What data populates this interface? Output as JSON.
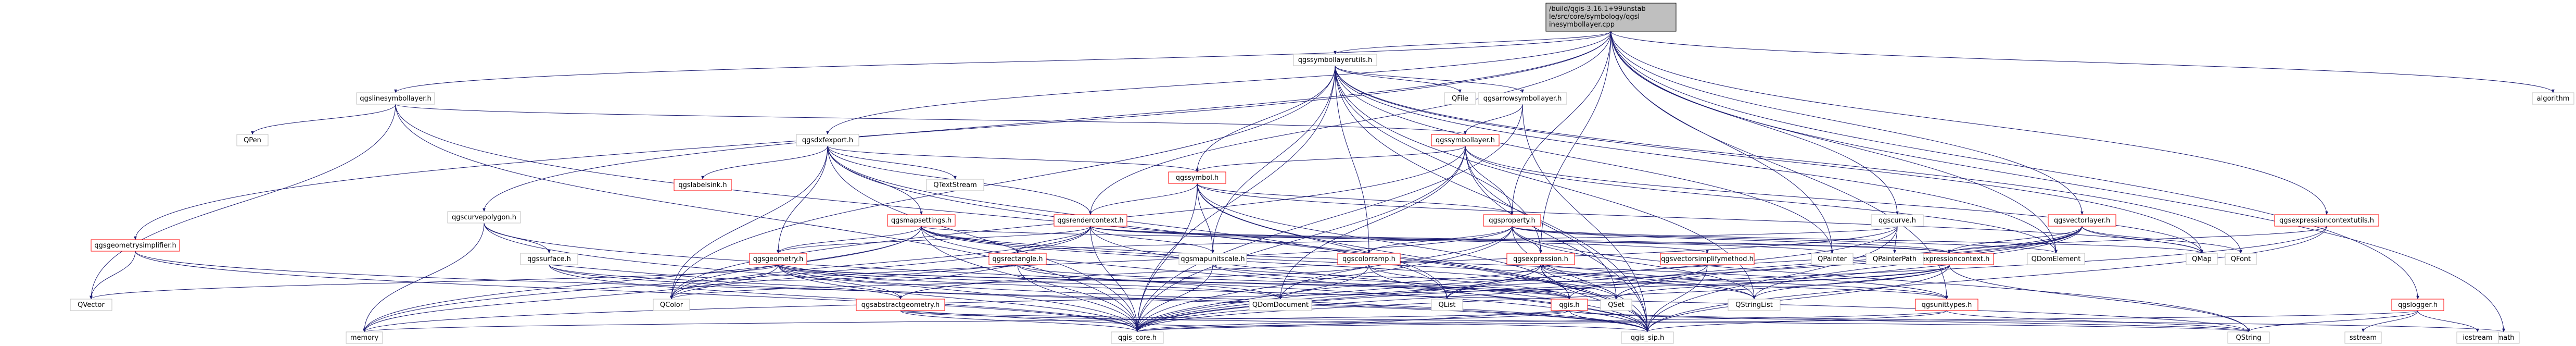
{
  "diagram": {
    "type": "include-dependency-graph",
    "colors": {
      "edge": "#191970",
      "border_default": "#bfbfbf",
      "border_link": "#ff0000",
      "border_root": "#000000",
      "fill_root": "#bfbfbf",
      "fill_default": "#ffffff",
      "text": "#000000"
    },
    "nodes": [
      {
        "id": "root",
        "label": "/build/qgis-3.16.1+99unstable/src/core/symbology/qgslinesymbollayer.cpp",
        "kind": "root"
      },
      {
        "id": "qgslinesymbollayer_h",
        "label": "qgslinesymbollayer.h",
        "kind": "default"
      },
      {
        "id": "qgssymbollayerutils_h",
        "label": "qgssymbollayerutils.h",
        "kind": "default"
      },
      {
        "id": "qgsdxfexport_h",
        "label": "qgsdxfexport.h",
        "kind": "default"
      },
      {
        "id": "qgsrendercontext_h",
        "label": "qgsrendercontext.h",
        "kind": "link"
      },
      {
        "id": "qgscurvepolygon_h",
        "label": "qgscurvepolygon.h",
        "kind": "default"
      },
      {
        "id": "qgsgeometrysimplifier_h",
        "label": "qgsgeometrysimplifier.h",
        "kind": "link"
      },
      {
        "id": "qgsarrowsymbollayer_h",
        "label": "qgsarrowsymbollayer.h",
        "kind": "default"
      },
      {
        "id": "qgssymbollayer_h",
        "label": "qgssymbollayer.h",
        "kind": "link"
      },
      {
        "id": "qgssymbol_h",
        "label": "qgssymbol.h",
        "kind": "link"
      },
      {
        "id": "qgsproperty_h",
        "label": "qgsproperty.h",
        "kind": "link"
      },
      {
        "id": "qgscurve_h",
        "label": "qgscurve.h",
        "kind": "default"
      },
      {
        "id": "qgsvectorlayer_h",
        "label": "qgsvectorlayer.h",
        "kind": "link"
      },
      {
        "id": "qgsexpressioncontextutils_h",
        "label": "qgsexpressioncontextutils.h",
        "kind": "link"
      },
      {
        "id": "qgslogger_h",
        "label": "qgslogger.h",
        "kind": "link"
      },
      {
        "id": "qgslabelsink_h",
        "label": "qgslabelsink.h",
        "kind": "link"
      },
      {
        "id": "qgsmapsettings_h",
        "label": "qgsmapsettings.h",
        "kind": "link"
      },
      {
        "id": "qgssurface_h",
        "label": "qgssurface.h",
        "kind": "default"
      },
      {
        "id": "qgsgeometry_h",
        "label": "qgsgeometry.h",
        "kind": "link"
      },
      {
        "id": "qgsrectangle_h",
        "label": "qgsrectangle.h",
        "kind": "link"
      },
      {
        "id": "qgsmapunitscale_h",
        "label": "qgsmapunitscale.h",
        "kind": "default"
      },
      {
        "id": "qgsvectorsimplifymethod_h",
        "label": "qgsvectorsimplifymethod.h",
        "kind": "link"
      },
      {
        "id": "qgscolorramp_h",
        "label": "qgscolorramp.h",
        "kind": "link"
      },
      {
        "id": "qgsexpression_h",
        "label": "qgsexpression.h",
        "kind": "link"
      },
      {
        "id": "qgsexpressioncontext_h",
        "label": "qgsexpressioncontext.h",
        "kind": "link"
      },
      {
        "id": "qgsabstractgeometry_h",
        "label": "qgsabstractgeometry.h",
        "kind": "link"
      },
      {
        "id": "qgis_h",
        "label": "qgis.h",
        "kind": "link"
      },
      {
        "id": "qgsunittypes_h",
        "label": "qgsunittypes.h",
        "kind": "link"
      },
      {
        "id": "qgis_core_h",
        "label": "qgis_core.h",
        "kind": "default"
      },
      {
        "id": "qgis_sip_h",
        "label": "qgis_sip.h",
        "kind": "default"
      },
      {
        "id": "QPen",
        "label": "QPen",
        "kind": "default"
      },
      {
        "id": "QTextStream",
        "label": "QTextStream",
        "kind": "default"
      },
      {
        "id": "QFile",
        "label": "QFile",
        "kind": "default"
      },
      {
        "id": "QMap",
        "label": "QMap",
        "kind": "default"
      },
      {
        "id": "QPainter",
        "label": "QPainter",
        "kind": "default"
      },
      {
        "id": "QFont",
        "label": "QFont",
        "kind": "default"
      },
      {
        "id": "QDomElement",
        "label": "QDomElement",
        "kind": "default"
      },
      {
        "id": "QPainterPath",
        "label": "QPainterPath",
        "kind": "default"
      },
      {
        "id": "QVector",
        "label": "QVector",
        "kind": "default"
      },
      {
        "id": "QColor",
        "label": "QColor",
        "kind": "default"
      },
      {
        "id": "QDomDocument",
        "label": "QDomDocument",
        "kind": "default"
      },
      {
        "id": "QList",
        "label": "QList",
        "kind": "default"
      },
      {
        "id": "QSet",
        "label": "QSet",
        "kind": "default"
      },
      {
        "id": "QStringList",
        "label": "QStringList",
        "kind": "default"
      },
      {
        "id": "QString",
        "label": "QString",
        "kind": "default"
      },
      {
        "id": "memory",
        "label": "memory",
        "kind": "default"
      },
      {
        "id": "cmath",
        "label": "cmath",
        "kind": "default"
      },
      {
        "id": "sstream",
        "label": "sstream",
        "kind": "default"
      },
      {
        "id": "iostream",
        "label": "iostream",
        "kind": "default"
      },
      {
        "id": "algorithm",
        "label": "algorithm",
        "kind": "default"
      }
    ],
    "edges": [
      [
        "root",
        "qgslinesymbollayer_h"
      ],
      [
        "root",
        "qgssymbollayerutils_h"
      ],
      [
        "root",
        "qgsdxfexport_h"
      ],
      [
        "root",
        "qgsrendercontext_h"
      ],
      [
        "root",
        "qgscurvepolygon_h"
      ],
      [
        "root",
        "qgsgeometrysimplifier_h"
      ],
      [
        "root",
        "qgsproperty_h"
      ],
      [
        "root",
        "qgscurve_h"
      ],
      [
        "root",
        "qgsvectorlayer_h"
      ],
      [
        "root",
        "qgsexpressioncontextutils_h"
      ],
      [
        "root",
        "qgslogger_h"
      ],
      [
        "root",
        "algorithm"
      ],
      [
        "root",
        "QDomElement"
      ],
      [
        "root",
        "QPainter"
      ],
      [
        "root",
        "cmath"
      ],
      [
        "root",
        "qgsexpression_h"
      ],
      [
        "root",
        "qgsunittypes_h"
      ],
      [
        "qgslinesymbollayer_h",
        "qgis_core_h"
      ],
      [
        "qgslinesymbollayer_h",
        "qgis_sip_h"
      ],
      [
        "qgslinesymbollayer_h",
        "qgssymbollayer_h"
      ],
      [
        "qgslinesymbollayer_h",
        "QPen"
      ],
      [
        "qgslinesymbollayer_h",
        "QVector"
      ],
      [
        "qgssymbollayerutils_h",
        "qgis_core_h"
      ],
      [
        "qgssymbollayerutils_h",
        "qgis_sip_h"
      ],
      [
        "qgssymbollayerutils_h",
        "qgsarrowsymbollayer_h"
      ],
      [
        "qgssymbollayerutils_h",
        "qgssymbol_h"
      ],
      [
        "qgssymbollayerutils_h",
        "qgsmapunitscale_h"
      ],
      [
        "qgssymbollayerutils_h",
        "qgscolorramp_h"
      ],
      [
        "qgssymbollayerutils_h",
        "QMap"
      ],
      [
        "qgssymbollayerutils_h",
        "QFile"
      ],
      [
        "qgssymbollayerutils_h",
        "QPainter"
      ],
      [
        "qgssymbollayerutils_h",
        "QFont"
      ],
      [
        "qgssymbollayerutils_h",
        "QColor"
      ],
      [
        "qgssymbollayerutils_h",
        "QDomElement"
      ],
      [
        "qgssymbollayerutils_h",
        "QStringList"
      ],
      [
        "qgssymbollayerutils_h",
        "qgsexpression_h"
      ],
      [
        "qgsarrowsymbollayer_h",
        "qgssymbollayer_h"
      ],
      [
        "qgsarrowsymbollayer_h",
        "qgis_sip_h"
      ],
      [
        "qgsarrowsymbollayer_h",
        "qgis_core_h"
      ],
      [
        "qgsdxfexport_h",
        "qgis_core_h"
      ],
      [
        "qgsdxfexport_h",
        "qgsgeometry_h"
      ],
      [
        "qgsdxfexport_h",
        "qgssymbol_h"
      ],
      [
        "qgsdxfexport_h",
        "qgsmapsettings_h"
      ],
      [
        "qgsdxfexport_h",
        "qgslabelsink_h"
      ],
      [
        "qgsdxfexport_h",
        "qgsrendercontext_h"
      ],
      [
        "qgsdxfexport_h",
        "QColor"
      ],
      [
        "qgsdxfexport_h",
        "QList"
      ],
      [
        "qgsdxfexport_h",
        "QTextStream"
      ],
      [
        "qgsdxfexport_h",
        "qgis_sip_h"
      ],
      [
        "qgsrendercontext_h",
        "qgis_core_h"
      ],
      [
        "qgsrendercontext_h",
        "qgis_sip_h"
      ],
      [
        "qgsrendercontext_h",
        "QColor"
      ],
      [
        "qgsrendercontext_h",
        "memory"
      ],
      [
        "qgsrendercontext_h",
        "qgsrectangle_h"
      ],
      [
        "qgsrendercontext_h",
        "qgsvectorsimplifymethod_h"
      ],
      [
        "qgsrendercontext_h",
        "qgsexpressioncontext_h"
      ],
      [
        "qgsrendercontext_h",
        "qgsmapunitscale_h"
      ],
      [
        "qgsrendercontext_h",
        "QPainter"
      ],
      [
        "qgsrendercontext_h",
        "qgsgeometry_h"
      ],
      [
        "qgscurvepolygon_h",
        "qgis_core_h"
      ],
      [
        "qgscurvepolygon_h",
        "qgis_sip_h"
      ],
      [
        "qgscurvepolygon_h",
        "qgssurface_h"
      ],
      [
        "qgscurvepolygon_h",
        "memory"
      ],
      [
        "qgsgeometrysimplifier_h",
        "qgis_core_h"
      ],
      [
        "qgsgeometrysimplifier_h",
        "qgis_sip_h"
      ],
      [
        "qgsgeometrysimplifier_h",
        "QVector"
      ],
      [
        "qgssymbollayer_h",
        "qgis_core_h"
      ],
      [
        "qgssymbollayer_h",
        "qgis_sip_h"
      ],
      [
        "qgssymbollayer_h",
        "qgssymbol_h"
      ],
      [
        "qgssymbollayer_h",
        "qgsproperty_h"
      ],
      [
        "qgssymbollayer_h",
        "QColor"
      ],
      [
        "qgssymbollayer_h",
        "QMap"
      ],
      [
        "qgssymbollayer_h",
        "QPointF"
      ],
      [
        "qgssymbollayer_h",
        "QSet"
      ],
      [
        "qgssymbollayer_h",
        "QDomDocument"
      ],
      [
        "qgssymbollayer_h",
        "QDomElement"
      ],
      [
        "qgssymbol_h",
        "qgis_core_h"
      ],
      [
        "qgssymbol_h",
        "qgis_sip_h"
      ],
      [
        "qgssymbol_h",
        "qgis_h"
      ],
      [
        "qgssymbol_h",
        "qgsrendercontext_h"
      ],
      [
        "qgssymbol_h",
        "qgsproperty_h"
      ],
      [
        "qgssymbol_h",
        "QList"
      ],
      [
        "qgssymbol_h",
        "QMap"
      ],
      [
        "qgssymbol_h",
        "qgsmapunitscale_h"
      ],
      [
        "qgsproperty_h",
        "qgis_core_h"
      ],
      [
        "qgsproperty_h",
        "qgis_sip_h"
      ],
      [
        "qgsproperty_h",
        "qgsexpression_h"
      ],
      [
        "qgsproperty_h",
        "qgsexpressioncontext_h"
      ],
      [
        "qgsproperty_h",
        "qgscolorramp_h"
      ],
      [
        "qgsproperty_h",
        "QVariant"
      ],
      [
        "qgsproperty_h",
        "QHash"
      ],
      [
        "qgsproperty_h",
        "QString"
      ],
      [
        "qgsproperty_h",
        "QStringList"
      ],
      [
        "qgsproperty_h",
        "QDomElement"
      ],
      [
        "qgsproperty_h",
        "QDomDocument"
      ],
      [
        "qgsproperty_h",
        "QColor"
      ],
      [
        "qgsproperty_h",
        "QMap"
      ],
      [
        "qgscurve_h",
        "qgis_core_h"
      ],
      [
        "qgscurve_h",
        "qgis_sip_h"
      ],
      [
        "qgscurve_h",
        "qgsabstractgeometry_h"
      ],
      [
        "qgscurve_h",
        "qgsrectangle_h"
      ],
      [
        "qgscurve_h",
        "QPainterPath"
      ],
      [
        "qgsvectorlayer_h",
        "qgis_core_h"
      ],
      [
        "qgsvectorlayer_h",
        "QMap"
      ],
      [
        "qgsvectorlayer_h",
        "QSet"
      ],
      [
        "qgsvectorlayer_h",
        "QList"
      ],
      [
        "qgsvectorlayer_h",
        "QStringList"
      ],
      [
        "qgsvectorlayer_h",
        "QFont"
      ],
      [
        "qgsvectorlayer_h",
        "QMutex"
      ],
      [
        "qgsvectorlayer_h",
        "qgis_h"
      ],
      [
        "qgsvectorlayer_h",
        "qgsexpressioncontext_h"
      ],
      [
        "qgsexpressioncontextutils_h",
        "qgis_core_h"
      ],
      [
        "qgsexpressioncontextutils_h",
        "qgis_sip_h"
      ],
      [
        "qgsexpressioncontextutils_h",
        "qgsexpressioncontext_h"
      ],
      [
        "qgslogger_h",
        "iostream"
      ],
      [
        "qgslogger_h",
        "sstream"
      ],
      [
        "qgslogger_h",
        "QString"
      ],
      [
        "qgslogger_h",
        "qgis_core_h"
      ],
      [
        "qgsmapsettings_h",
        "qgis_core_h"
      ],
      [
        "qgsmapsettings_h",
        "qgis_sip_h"
      ],
      [
        "qgsmapsettings_h",
        "QColor"
      ],
      [
        "qgsmapsettings_h",
        "QSet"
      ],
      [
        "qgsmapsettings_h",
        "QSize"
      ],
      [
        "qgsmapsettings_h",
        "QStringList"
      ],
      [
        "qgsmapsettings_h",
        "qgsrectangle_h"
      ],
      [
        "qgsmapsettings_h",
        "qgsgeometry_h"
      ],
      [
        "qgsmapsettings_h",
        "qgsexpressioncontext_h"
      ],
      [
        "qgsmapsettings_h",
        "qgsmaplayer_h"
      ],
      [
        "qgsmapsettings_h",
        "qgsunittypes_h"
      ],
      [
        "qgsmapsettings_h",
        "memory"
      ],
      [
        "qgssurface_h",
        "qgis_core_h"
      ],
      [
        "qgssurface_h",
        "qgis_sip_h"
      ],
      [
        "qgssurface_h",
        "qgsabstractgeometry_h"
      ],
      [
        "qgssurface_h",
        "qgsrectangle_h"
      ],
      [
        "qgsgeometry_h",
        "qgis_core_h"
      ],
      [
        "qgsgeometry_h",
        "qgis_sip_h"
      ],
      [
        "qgsgeometry_h",
        "QDomDocument"
      ],
      [
        "qgsgeometry_h",
        "QSet"
      ],
      [
        "qgsgeometry_h",
        "QString"
      ],
      [
        "qgsgeometry_h",
        "QVector"
      ],
      [
        "qgsgeometry_h",
        "qgsabstractgeometry_h"
      ],
      [
        "qgsgeometry_h",
        "qgsrectangle_h"
      ],
      [
        "qgsgeometry_h",
        "memory"
      ],
      [
        "qgsgeometry_h",
        "qgis_h"
      ],
      [
        "qgsrectangle_h",
        "qgis_core_h"
      ],
      [
        "qgsrectangle_h",
        "qgis_h"
      ],
      [
        "qgsrectangle_h",
        "QDomDocument"
      ],
      [
        "qgsmapunitscale_h",
        "qgis_core_h"
      ],
      [
        "qgsmapunitscale_h",
        "qgis_h"
      ],
      [
        "qgsmapunitscale_h",
        "qgsunittypes_h"
      ],
      [
        "qgsvectorsimplifymethod_h",
        "qgis_core_h"
      ],
      [
        "qgsvectorsimplifymethod_h",
        "qgis_sip_h"
      ],
      [
        "qgscolorramp_h",
        "qgis_core_h"
      ],
      [
        "qgscolorramp_h",
        "qgis_sip_h"
      ],
      [
        "qgscolorramp_h",
        "QColor"
      ],
      [
        "qgscolorramp_h",
        "qgis_h"
      ],
      [
        "qgsexpression_h",
        "qgis_core_h"
      ],
      [
        "qgsexpression_h",
        "QMetaType"
      ],
      [
        "qgsexpression_h",
        "QStringList"
      ],
      [
        "qgsexpression_h",
        "QVariant"
      ],
      [
        "qgsexpression_h",
        "QList"
      ],
      [
        "qgsexpression_h",
        "QDomDocument"
      ],
      [
        "qgsexpression_h",
        "QCoreApplication"
      ],
      [
        "qgsexpression_h",
        "QSet"
      ],
      [
        "qgsexpression_h",
        "qgsunittypes_h"
      ],
      [
        "qgsexpression_h",
        "qgis_h"
      ],
      [
        "qgsexpression_h",
        "qgis_sip_h"
      ],
      [
        "qgsexpressioncontext_h",
        "qgis_core_h"
      ],
      [
        "qgsexpressioncontext_h",
        "qgis_sip_h"
      ],
      [
        "qgsexpressioncontext_h",
        "QVariant"
      ],
      [
        "qgsexpressioncontext_h",
        "QHash"
      ],
      [
        "qgsexpressioncontext_h",
        "QString"
      ],
      [
        "qgsexpressioncontext_h",
        "QStringList"
      ],
      [
        "qgsexpressioncontext_h",
        "QSet"
      ],
      [
        "qgsexpressioncontext_h",
        "QPointer"
      ],
      [
        "qgsexpressioncontext_h",
        "memory"
      ],
      [
        "qgsexpressioncontext_h",
        "qgsfeature_h"
      ],
      [
        "qgsexpressioncontext_h",
        "qgsexpression_h"
      ],
      [
        "qgsabstractgeometry_h",
        "qgis_core_h"
      ],
      [
        "qgsabstractgeometry_h",
        "qgis_sip_h"
      ],
      [
        "qgsabstractgeometry_h",
        "QString"
      ],
      [
        "qgsabstractgeometry_h",
        "qgis_h"
      ],
      [
        "qgis_h",
        "qgis_core_h"
      ],
      [
        "qgis_h",
        "qgis_sip_h"
      ],
      [
        "qgis_h",
        "QString"
      ],
      [
        "qgis_h",
        "cmath"
      ],
      [
        "qgis_h",
        "memory"
      ],
      [
        "qgsunittypes_h",
        "qgis_core_h"
      ],
      [
        "qgsunittypes_h",
        "qgis_sip_h"
      ],
      [
        "qgsunittypes_h",
        "QString"
      ]
    ]
  }
}
